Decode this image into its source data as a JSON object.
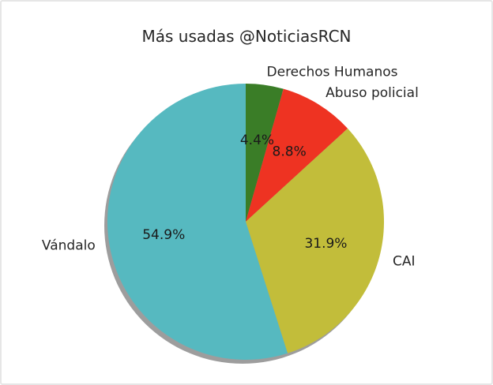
{
  "chart_data": {
    "type": "pie",
    "title": "Más usadas @NoticiasRCN",
    "categories": [
      "Derechos Humanos",
      "Abuso policial",
      "CAI",
      "Vándalo"
    ],
    "values": [
      4.4,
      8.8,
      31.9,
      54.9
    ],
    "percent_labels": [
      "4.4%",
      "8.8%",
      "31.9%",
      "54.9%"
    ],
    "colors": [
      "#3a7d27",
      "#ee3322",
      "#c2bd3a",
      "#56b9c0"
    ],
    "shadow": true,
    "start_angle_deg": 90,
    "direction": "clockwise"
  }
}
